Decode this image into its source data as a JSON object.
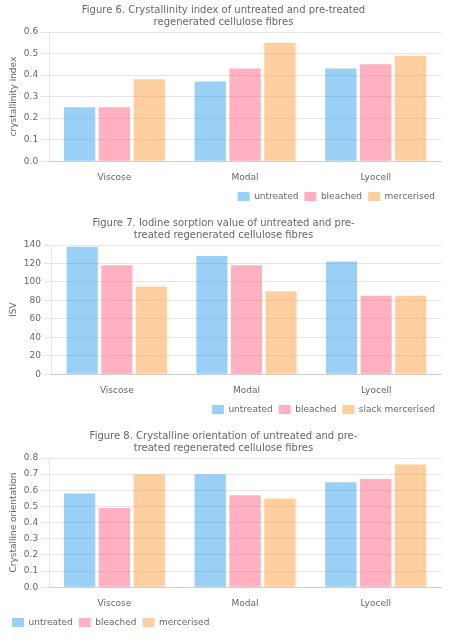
{
  "chart_data": [
    {
      "type": "bar",
      "title": [
        "Figure 6. Crystallinity index of untreated and pre-treated",
        "regenerated cellulose fibres"
      ],
      "ylabel": "crystallinity index",
      "categories": [
        "Viscose",
        "Modal",
        "Lyocell"
      ],
      "series": [
        {
          "name": "untreated",
          "values": [
            0.25,
            0.37,
            0.43
          ]
        },
        {
          "name": "bleached",
          "values": [
            0.25,
            0.43,
            0.45
          ]
        },
        {
          "name": "mercerised",
          "values": [
            0.38,
            0.55,
            0.49
          ]
        }
      ],
      "ylim": [
        0.0,
        0.6
      ],
      "yticks": [
        {
          "value": 0.0,
          "label": "0.0"
        },
        0.1,
        0.2,
        0.3,
        0.4,
        0.5,
        0.6
      ],
      "grid": true,
      "legend": "lower right"
    },
    {
      "type": "bar",
      "title": [
        "Figure 7. Iodine sorption value of untreated and pre-",
        "treated regenerated cellulose fibres"
      ],
      "ylabel": "ISV",
      "categories": [
        "Viscose",
        "Modal",
        "Lyocell"
      ],
      "series": [
        {
          "name": "untreated",
          "values": [
            138,
            128,
            122
          ]
        },
        {
          "name": "bleached",
          "values": [
            118,
            118,
            85
          ]
        },
        {
          "name": "slack mercerised",
          "values": [
            95,
            90,
            85
          ]
        }
      ],
      "ylim": [
        0,
        140
      ],
      "yticks": [
        0,
        20,
        40,
        60,
        80,
        100,
        120,
        140
      ],
      "grid": true,
      "legend": "lower right"
    },
    {
      "type": "bar",
      "title": [
        "Figure 8. Crystalline orientation of untreated and pre-",
        "treated regenerated cellulose fibres"
      ],
      "ylabel": "Crystalline orientation",
      "categories": [
        "Viscose",
        "Modal",
        "Lyocell"
      ],
      "series": [
        {
          "name": "untreated",
          "values": [
            0.58,
            0.7,
            0.65
          ]
        },
        {
          "name": "bleached",
          "values": [
            0.49,
            0.57,
            0.67
          ]
        },
        {
          "name": "mercerised",
          "values": [
            0.7,
            0.55,
            0.76
          ]
        }
      ],
      "ylim": [
        0.0,
        0.8
      ],
      "yticks": [
        {
          "value": 0.0,
          "label": "0.0"
        },
        0.1,
        0.2,
        0.3,
        0.4,
        0.5,
        0.6,
        0.7,
        0.8
      ],
      "grid": true,
      "legend": "lower left"
    }
  ]
}
